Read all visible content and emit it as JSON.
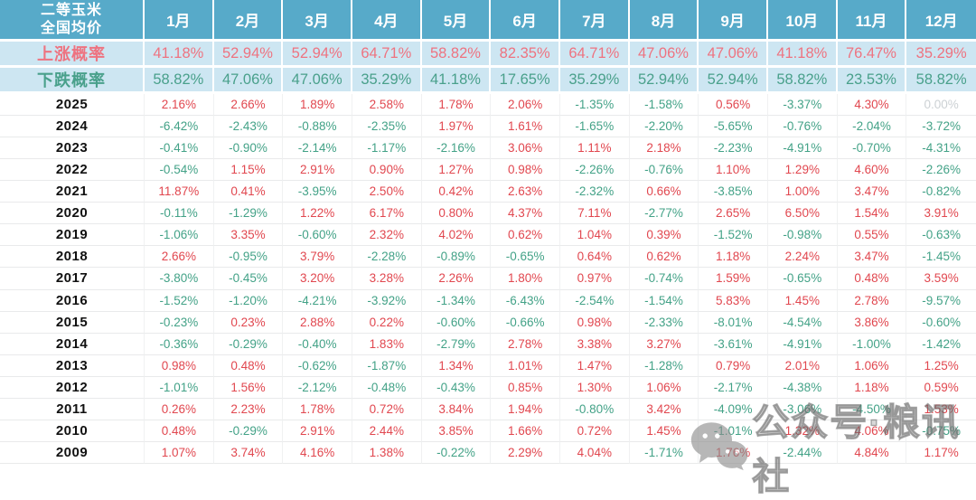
{
  "chart_data": {
    "type": "table",
    "title": "二等玉米 全国均价",
    "corner_title": [
      "二等玉米",
      "全国均价"
    ],
    "columns": [
      "1月",
      "2月",
      "3月",
      "4月",
      "5月",
      "6月",
      "7月",
      "8月",
      "9月",
      "10月",
      "11月",
      "12月"
    ],
    "rise_probability": {
      "label": "上涨概率",
      "values": [
        "41.18%",
        "52.94%",
        "52.94%",
        "64.71%",
        "58.82%",
        "82.35%",
        "64.71%",
        "47.06%",
        "47.06%",
        "41.18%",
        "76.47%",
        "35.29%"
      ]
    },
    "fall_probability": {
      "label": "下跌概率",
      "values": [
        "58.82%",
        "47.06%",
        "47.06%",
        "35.29%",
        "41.18%",
        "17.65%",
        "35.29%",
        "52.94%",
        "52.94%",
        "58.82%",
        "23.53%",
        "58.82%"
      ]
    },
    "rows": [
      {
        "year": "2025",
        "values": [
          "2.16%",
          "2.66%",
          "1.89%",
          "2.58%",
          "1.78%",
          "2.06%",
          "-1.35%",
          "-1.58%",
          "0.56%",
          "-3.37%",
          "4.30%",
          "0.00%"
        ]
      },
      {
        "year": "2024",
        "values": [
          "-6.42%",
          "-2.43%",
          "-0.88%",
          "-2.35%",
          "1.97%",
          "1.61%",
          "-1.65%",
          "-2.20%",
          "-5.65%",
          "-0.76%",
          "-2.04%",
          "-3.72%"
        ]
      },
      {
        "year": "2023",
        "values": [
          "-0.41%",
          "-0.90%",
          "-2.14%",
          "-1.17%",
          "-2.16%",
          "3.06%",
          "1.11%",
          "2.18%",
          "-2.23%",
          "-4.91%",
          "-0.70%",
          "-4.31%"
        ]
      },
      {
        "year": "2022",
        "values": [
          "-0.54%",
          "1.15%",
          "2.91%",
          "0.90%",
          "1.27%",
          "0.98%",
          "-2.26%",
          "-0.76%",
          "1.10%",
          "1.29%",
          "4.60%",
          "-2.26%"
        ]
      },
      {
        "year": "2021",
        "values": [
          "11.87%",
          "0.41%",
          "-3.95%",
          "2.50%",
          "0.42%",
          "2.63%",
          "-2.32%",
          "0.66%",
          "-3.85%",
          "1.00%",
          "3.47%",
          "-0.82%"
        ]
      },
      {
        "year": "2020",
        "values": [
          "-0.11%",
          "-1.29%",
          "1.22%",
          "6.17%",
          "0.80%",
          "4.37%",
          "7.11%",
          "-2.77%",
          "2.65%",
          "6.50%",
          "1.54%",
          "3.91%"
        ]
      },
      {
        "year": "2019",
        "values": [
          "-1.06%",
          "3.35%",
          "-0.60%",
          "2.32%",
          "4.02%",
          "0.62%",
          "1.04%",
          "0.39%",
          "-1.52%",
          "-0.98%",
          "0.55%",
          "-0.63%"
        ]
      },
      {
        "year": "2018",
        "values": [
          "2.66%",
          "-0.95%",
          "3.79%",
          "-2.28%",
          "-0.89%",
          "-0.65%",
          "0.64%",
          "0.62%",
          "1.18%",
          "2.24%",
          "3.47%",
          "-1.45%"
        ]
      },
      {
        "year": "2017",
        "values": [
          "-3.80%",
          "-0.45%",
          "3.20%",
          "3.28%",
          "2.26%",
          "1.80%",
          "0.97%",
          "-0.74%",
          "1.59%",
          "-0.65%",
          "0.48%",
          "3.59%"
        ]
      },
      {
        "year": "2016",
        "values": [
          "-1.52%",
          "-1.20%",
          "-4.21%",
          "-3.92%",
          "-1.34%",
          "-6.43%",
          "-2.54%",
          "-1.54%",
          "5.83%",
          "1.45%",
          "2.78%",
          "-9.57%"
        ]
      },
      {
        "year": "2015",
        "values": [
          "-0.23%",
          "0.23%",
          "2.88%",
          "0.22%",
          "-0.60%",
          "-0.66%",
          "0.98%",
          "-2.33%",
          "-8.01%",
          "-4.54%",
          "3.86%",
          "-0.60%"
        ]
      },
      {
        "year": "2014",
        "values": [
          "-0.36%",
          "-0.29%",
          "-0.40%",
          "1.83%",
          "-2.79%",
          "2.78%",
          "3.38%",
          "3.27%",
          "-3.61%",
          "-4.91%",
          "-1.00%",
          "-1.42%"
        ]
      },
      {
        "year": "2013",
        "values": [
          "0.98%",
          "0.48%",
          "-0.62%",
          "-1.87%",
          "1.34%",
          "1.01%",
          "1.47%",
          "-1.28%",
          "0.79%",
          "2.01%",
          "1.06%",
          "1.25%"
        ]
      },
      {
        "year": "2012",
        "values": [
          "-1.01%",
          "1.56%",
          "-2.12%",
          "-0.48%",
          "-0.43%",
          "0.85%",
          "1.30%",
          "1.06%",
          "-2.17%",
          "-4.38%",
          "1.18%",
          "0.59%"
        ]
      },
      {
        "year": "2011",
        "values": [
          "0.26%",
          "2.23%",
          "1.78%",
          "0.72%",
          "3.84%",
          "1.94%",
          "-0.80%",
          "3.42%",
          "-4.09%",
          "-3.06%",
          "-4.50%",
          "1.53%"
        ]
      },
      {
        "year": "2010",
        "values": [
          "0.48%",
          "-0.29%",
          "2.91%",
          "2.44%",
          "3.85%",
          "1.66%",
          "0.72%",
          "1.45%",
          "-1.01%",
          "1.32%",
          "4.06%",
          "-0.75%"
        ]
      },
      {
        "year": "2009",
        "values": [
          "1.07%",
          "3.74%",
          "4.16%",
          "1.38%",
          "-0.22%",
          "2.29%",
          "4.04%",
          "-1.71%",
          "1.76%",
          "-2.44%",
          "4.84%",
          "1.17%"
        ]
      }
    ]
  },
  "watermark": {
    "text": "公众号·粮讯社",
    "icon": "wechat-icon"
  },
  "colors": {
    "header_bg": "#57aac9",
    "probability_bg": "#cde6f2",
    "rise_red": "#ee7380",
    "fall_green": "#49a08b",
    "value_red": "#e1474f",
    "value_green": "#43a287",
    "zero_muted": "#ccd1d4"
  }
}
